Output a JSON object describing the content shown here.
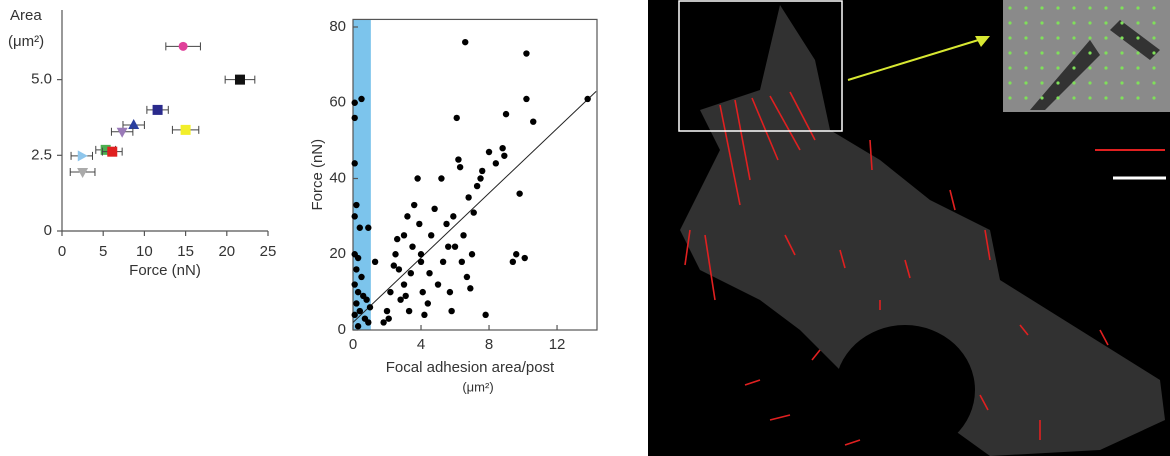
{
  "chart_data": [
    {
      "type": "scatter",
      "title_lines": [
        "Area",
        "(μm²)"
      ],
      "x_label": "Force (nN)",
      "xlim": [
        0,
        25
      ],
      "ylim": [
        0,
        7.3
      ],
      "xticks": [
        0,
        5,
        10,
        15,
        20,
        25
      ],
      "yticks": [
        0,
        2.5,
        {
          "value": 5,
          "label": "5.0"
        }
      ],
      "x": [
        14.7,
        21.6,
        11.6,
        8.7,
        7.3,
        15.0,
        5.3,
        6.1,
        2.4,
        2.5
      ],
      "y": [
        6.1,
        5.0,
        4.0,
        3.5,
        3.28,
        3.34,
        2.68,
        2.62,
        2.48,
        1.95
      ],
      "xerr": [
        2.1,
        1.8,
        1.3,
        1.3,
        1.3,
        1.6,
        1.2,
        1.2,
        1.3,
        1.5
      ],
      "colors": [
        "#e0409a",
        "#111111",
        "#2a2a8c",
        "#2b3f9e",
        "#9a7ab8",
        "#f2ee2a",
        "#4caf50",
        "#e02020",
        "#8ec6ec",
        "#aaaaaa"
      ],
      "markers": [
        "circle",
        "square",
        "square",
        "triangle-up",
        "triangle-down",
        "square",
        "square",
        "square",
        "triangle-right",
        "triangle-down"
      ]
    },
    {
      "type": "scatter",
      "x_label": "Focal adhesion area/post",
      "x_unit": "(μm²)",
      "y_label": "Force (nN)",
      "xlim": [
        0,
        14.35
      ],
      "ylim": [
        0,
        82
      ],
      "xticks": [
        0,
        4,
        8,
        12
      ],
      "yticks": [
        0,
        20,
        40,
        60,
        80
      ],
      "highlight_xrange": [
        0,
        1.05
      ],
      "highlight_color": "#7cc4ec",
      "fit": {
        "x": [
          0,
          14.3
        ],
        "y": [
          2,
          63
        ]
      },
      "color": "#000000",
      "x": [
        0.1,
        0.1,
        0.5,
        0.1,
        0.2,
        0.1,
        0.4,
        0.9,
        0.1,
        0.3,
        0.2,
        0.5,
        0.1,
        0.3,
        0.6,
        0.2,
        0.8,
        0.4,
        0.1,
        0.7,
        1.0,
        1.3,
        0.9,
        0.3,
        1.8,
        2,
        2.2,
        2.4,
        2.5,
        2.6,
        2.8,
        3,
        3,
        3.2,
        3.3,
        3.4,
        3.5,
        3.6,
        3.8,
        3.9,
        4,
        4,
        4.1,
        4.2,
        4.5,
        4.6,
        4.8,
        5,
        5.2,
        5.3,
        5.5,
        5.6,
        5.7,
        5.9,
        6,
        6.1,
        6.2,
        6.3,
        6.4,
        6.5,
        6.6,
        6.7,
        6.8,
        7,
        7.1,
        7.3,
        7.5,
        7.6,
        7.8,
        8,
        8.4,
        8.8,
        8.9,
        9,
        9.4,
        9.6,
        9.8,
        10.1,
        10.2,
        10.2,
        10.6,
        13.8,
        2.1,
        2.7,
        3.1,
        4.4,
        5.8,
        6.9
      ],
      "y": [
        56,
        60,
        61,
        44,
        33,
        30,
        27,
        27,
        20,
        19,
        16,
        14,
        12,
        10,
        9,
        7,
        8,
        5,
        4,
        3,
        6,
        18,
        2,
        1,
        2,
        5,
        10,
        17,
        20,
        24,
        8,
        12,
        25,
        30,
        5,
        15,
        22,
        33,
        40,
        28,
        20,
        18,
        10,
        4,
        15,
        25,
        32,
        12,
        40,
        18,
        28,
        22,
        10,
        30,
        22,
        56,
        45,
        43,
        18,
        25,
        76,
        14,
        35,
        20,
        31,
        38,
        40,
        42,
        4,
        47,
        44,
        48,
        46,
        57,
        18,
        20,
        36,
        19,
        73,
        61,
        55,
        61,
        3,
        16,
        9,
        7,
        5,
        11
      ]
    }
  ]
}
